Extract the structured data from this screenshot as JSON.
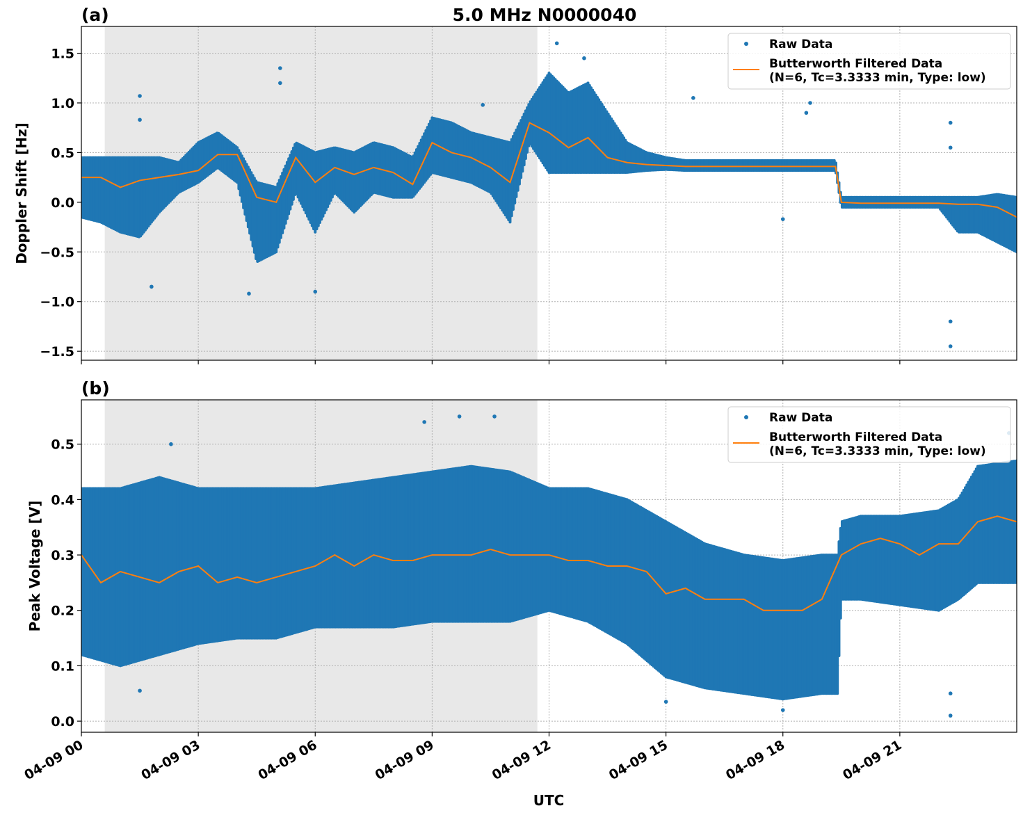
{
  "title": "5.0 MHz N0000040",
  "xlabel": "UTC",
  "x_tick_labels": [
    "04-09 00",
    "04-09 03",
    "04-09 06",
    "04-09 09",
    "04-09 12",
    "04-09 15",
    "04-09 18",
    "04-09 21"
  ],
  "colors": {
    "raw": "#1f77b4",
    "filtered": "#ff7f0e",
    "shade": "#e8e8e8"
  },
  "chart_data": [
    {
      "panel_label": "(a)",
      "type": "scatter+line",
      "ylabel": "Doppler Shift [Hz]",
      "xlim_hours_utc": [
        0,
        24
      ],
      "ylim": [
        -1.59,
        1.77
      ],
      "y_ticks": [
        -1.5,
        -1.0,
        -0.5,
        0.0,
        0.5,
        1.0,
        1.5
      ],
      "y_tick_labels": [
        "−1.5",
        "−1.0",
        "−0.5",
        "0.0",
        "0.5",
        "1.0",
        "1.5"
      ],
      "grid": true,
      "shaded_interval_hours_utc": [
        0.6,
        11.7
      ],
      "legend": {
        "position": "top-right",
        "entries": [
          "Raw Data",
          "Butterworth Filtered Data",
          "(N=6, Tc=3.3333 min, Type: low)"
        ]
      },
      "raw_data": {
        "x": [
          0,
          0.5,
          1,
          1.5,
          2,
          2.5,
          3,
          3.5,
          4,
          4.5,
          5,
          5.5,
          6,
          6.5,
          7,
          7.5,
          8,
          8.5,
          9,
          9.5,
          10,
          10.5,
          11,
          11.5,
          12,
          12.5,
          13,
          13.5,
          14,
          14.5,
          15,
          15.5,
          16,
          17,
          18,
          19,
          19.35,
          19.5,
          20,
          21,
          22,
          22.5,
          23,
          23.5,
          24
        ],
        "low": [
          -0.15,
          -0.2,
          -0.3,
          -0.35,
          -0.1,
          0.1,
          0.2,
          0.35,
          0.2,
          -0.6,
          -0.5,
          0.1,
          -0.3,
          0.1,
          -0.1,
          0.1,
          0.05,
          0.05,
          0.3,
          0.25,
          0.2,
          0.1,
          -0.2,
          0.6,
          0.3,
          0.3,
          0.3,
          0.3,
          0.3,
          0.32,
          0.33,
          0.32,
          0.32,
          0.32,
          0.32,
          0.32,
          0.32,
          -0.05,
          -0.05,
          -0.05,
          -0.05,
          -0.3,
          -0.3,
          -0.4,
          -0.5
        ],
        "high": [
          0.45,
          0.45,
          0.45,
          0.45,
          0.45,
          0.4,
          0.6,
          0.7,
          0.55,
          0.2,
          0.15,
          0.6,
          0.5,
          0.55,
          0.5,
          0.6,
          0.55,
          0.45,
          0.85,
          0.8,
          0.7,
          0.65,
          0.6,
          1.0,
          1.3,
          1.1,
          1.2,
          0.9,
          0.6,
          0.5,
          0.45,
          0.42,
          0.42,
          0.42,
          0.42,
          0.42,
          0.42,
          0.05,
          0.05,
          0.05,
          0.05,
          0.05,
          0.05,
          0.08,
          0.05
        ],
        "outliers": [
          [
            1.5,
            1.07
          ],
          [
            1.5,
            0.83
          ],
          [
            1.8,
            -0.85
          ],
          [
            4.3,
            -0.92
          ],
          [
            5.1,
            1.35
          ],
          [
            5.1,
            1.2
          ],
          [
            6.0,
            -0.9
          ],
          [
            10.3,
            0.98
          ],
          [
            12.2,
            1.6
          ],
          [
            12.9,
            1.45
          ],
          [
            15.7,
            1.05
          ],
          [
            18.0,
            -0.17
          ],
          [
            18.6,
            0.9
          ],
          [
            18.7,
            1.0
          ],
          [
            22.3,
            0.8
          ],
          [
            22.3,
            0.55
          ],
          [
            22.3,
            -1.2
          ],
          [
            22.3,
            -1.45
          ]
        ]
      },
      "filtered_data": {
        "x": [
          0,
          0.5,
          1,
          1.5,
          2,
          2.5,
          3,
          3.5,
          4,
          4.5,
          5,
          5.5,
          6,
          6.5,
          7,
          7.5,
          8,
          8.5,
          9,
          9.5,
          10,
          10.5,
          11,
          11.5,
          12,
          12.5,
          13,
          13.5,
          14,
          14.5,
          15,
          15.5,
          16,
          16.5,
          17,
          17.5,
          18,
          18.5,
          19,
          19.35,
          19.5,
          20,
          20.5,
          21,
          21.5,
          22,
          22.5,
          23,
          23.5,
          24
        ],
        "y": [
          0.25,
          0.25,
          0.15,
          0.22,
          0.25,
          0.28,
          0.32,
          0.48,
          0.48,
          0.05,
          0.0,
          0.45,
          0.2,
          0.35,
          0.28,
          0.35,
          0.3,
          0.18,
          0.6,
          0.5,
          0.45,
          0.35,
          0.2,
          0.8,
          0.7,
          0.55,
          0.65,
          0.45,
          0.4,
          0.38,
          0.37,
          0.36,
          0.36,
          0.36,
          0.36,
          0.36,
          0.36,
          0.36,
          0.36,
          0.36,
          0.0,
          -0.01,
          -0.01,
          -0.01,
          -0.01,
          -0.01,
          -0.02,
          -0.02,
          -0.05,
          -0.15
        ]
      }
    },
    {
      "panel_label": "(b)",
      "type": "scatter+line",
      "ylabel": "Peak Voltage [V]",
      "xlim_hours_utc": [
        0,
        24
      ],
      "ylim": [
        -0.02,
        0.58
      ],
      "y_ticks": [
        0.0,
        0.1,
        0.2,
        0.3,
        0.4,
        0.5
      ],
      "y_tick_labels": [
        "0.0",
        "0.1",
        "0.2",
        "0.3",
        "0.4",
        "0.5"
      ],
      "grid": true,
      "shaded_interval_hours_utc": [
        0.6,
        11.7
      ],
      "legend": {
        "position": "top-right",
        "entries": [
          "Raw Data",
          "Butterworth Filtered Data",
          "(N=6, Tc=3.3333 min, Type: low)"
        ]
      },
      "raw_data": {
        "x": [
          0,
          1,
          2,
          3,
          4,
          5,
          6,
          7,
          8,
          9,
          10,
          11,
          12,
          13,
          14,
          15,
          16,
          17,
          18,
          19,
          19.4,
          19.5,
          20,
          21,
          22,
          22.5,
          23,
          24
        ],
        "low": [
          0.12,
          0.1,
          0.12,
          0.14,
          0.15,
          0.15,
          0.17,
          0.17,
          0.17,
          0.18,
          0.18,
          0.18,
          0.2,
          0.18,
          0.14,
          0.08,
          0.06,
          0.05,
          0.04,
          0.05,
          0.05,
          0.22,
          0.22,
          0.21,
          0.2,
          0.22,
          0.25,
          0.25
        ],
        "high": [
          0.42,
          0.42,
          0.44,
          0.42,
          0.42,
          0.42,
          0.42,
          0.43,
          0.44,
          0.45,
          0.46,
          0.45,
          0.42,
          0.42,
          0.4,
          0.36,
          0.32,
          0.3,
          0.29,
          0.3,
          0.3,
          0.36,
          0.37,
          0.37,
          0.38,
          0.4,
          0.46,
          0.47
        ],
        "outliers": [
          [
            1.5,
            0.055
          ],
          [
            2.3,
            0.5
          ],
          [
            8.8,
            0.54
          ],
          [
            9.7,
            0.55
          ],
          [
            10.6,
            0.55
          ],
          [
            15.0,
            0.035
          ],
          [
            18.0,
            0.02
          ],
          [
            22.3,
            0.01
          ],
          [
            22.3,
            0.05
          ],
          [
            23.8,
            0.52
          ]
        ]
      },
      "filtered_data": {
        "x": [
          0,
          0.5,
          1,
          1.5,
          2,
          2.5,
          3,
          3.5,
          4,
          4.5,
          5,
          5.5,
          6,
          6.5,
          7,
          7.5,
          8,
          8.5,
          9,
          9.5,
          10,
          10.5,
          11,
          11.5,
          12,
          12.5,
          13,
          13.5,
          14,
          14.5,
          15,
          15.5,
          16,
          16.5,
          17,
          17.5,
          18,
          18.5,
          19,
          19.5,
          20,
          20.5,
          21,
          21.5,
          22,
          22.5,
          23,
          23.5,
          24
        ],
        "y": [
          0.3,
          0.25,
          0.27,
          0.26,
          0.25,
          0.27,
          0.28,
          0.25,
          0.26,
          0.25,
          0.26,
          0.27,
          0.28,
          0.3,
          0.28,
          0.3,
          0.29,
          0.29,
          0.3,
          0.3,
          0.3,
          0.31,
          0.3,
          0.3,
          0.3,
          0.29,
          0.29,
          0.28,
          0.28,
          0.27,
          0.23,
          0.24,
          0.22,
          0.22,
          0.22,
          0.2,
          0.2,
          0.2,
          0.22,
          0.3,
          0.32,
          0.33,
          0.32,
          0.3,
          0.32,
          0.32,
          0.36,
          0.37,
          0.36
        ]
      }
    }
  ]
}
